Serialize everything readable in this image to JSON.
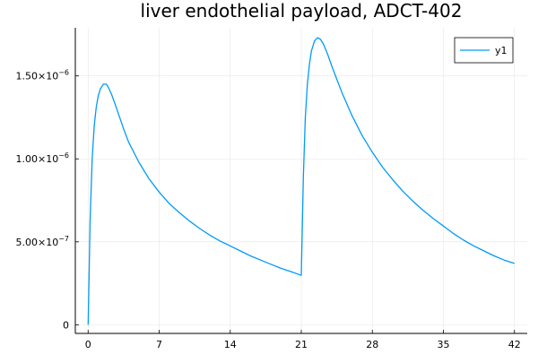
{
  "chart_data": {
    "type": "line",
    "title": "liver endothelial payload, ADCT-402",
    "xlabel": "",
    "ylabel": "",
    "xlim": [
      -1.26,
      43.26
    ],
    "ylim": [
      -5.2e-08,
      1.79e-06
    ],
    "x_ticks": [
      0,
      7,
      14,
      21,
      28,
      35,
      42
    ],
    "x_tick_labels": [
      "0",
      "7",
      "14",
      "21",
      "28",
      "35",
      "42"
    ],
    "y_ticks": [
      0,
      5e-07,
      1e-06,
      1.5e-06
    ],
    "y_tick_labels": [
      {
        "mantissa": "0",
        "exponent": ""
      },
      {
        "mantissa": "5.00×10",
        "exponent": "−7"
      },
      {
        "mantissa": "1.00×10",
        "exponent": "−6"
      },
      {
        "mantissa": "1.50×10",
        "exponent": "−6"
      }
    ],
    "grid": true,
    "legend_position": "top-right",
    "colors": {
      "series": "#009AF9",
      "grid": "#e6e6e6",
      "axis": "#000000"
    },
    "series": [
      {
        "name": "y1",
        "x": [
          0,
          0.2,
          0.4,
          0.6,
          0.8,
          1.0,
          1.2,
          1.5,
          1.8,
          2.0,
          2.3,
          2.6,
          3.0,
          3.5,
          4.0,
          5.0,
          6.0,
          7.0,
          8.0,
          9.0,
          10.0,
          11.0,
          12.0,
          13.0,
          14.0,
          15.0,
          16.0,
          17.0,
          18.0,
          19.0,
          20.0,
          21.0,
          21.0,
          21.2,
          21.4,
          21.6,
          21.8,
          22.0,
          22.3,
          22.6,
          22.9,
          23.2,
          23.6,
          24.0,
          24.5,
          25.0,
          26.0,
          27.0,
          28.0,
          29.0,
          30.0,
          31.0,
          32.0,
          33.0,
          34.0,
          35.0,
          36.0,
          37.0,
          38.0,
          39.0,
          40.0,
          41.0,
          42.0
        ],
        "y": [
          0,
          6.3e-07,
          1e-06,
          1.2e-06,
          1.31e-06,
          1.38e-06,
          1.42e-06,
          1.45e-06,
          1.45e-06,
          1.43e-06,
          1.39e-06,
          1.34e-06,
          1.27e-06,
          1.18e-06,
          1.1e-06,
          9.8e-07,
          8.8e-07,
          8e-07,
          7.3e-07,
          6.75e-07,
          6.25e-07,
          5.8e-07,
          5.4e-07,
          5.05e-07,
          4.75e-07,
          4.45e-07,
          4.15e-07,
          3.9e-07,
          3.65e-07,
          3.4e-07,
          3.2e-07,
          2.98e-07,
          2.98e-07,
          8.9e-07,
          1.25e-06,
          1.45e-06,
          1.57e-06,
          1.65e-06,
          1.71e-06,
          1.73e-06,
          1.72e-06,
          1.69e-06,
          1.63e-06,
          1.56e-06,
          1.48e-06,
          1.4e-06,
          1.26e-06,
          1.14e-06,
          1.04e-06,
          9.5e-07,
          8.75e-07,
          8.05e-07,
          7.45e-07,
          6.9e-07,
          6.4e-07,
          5.95e-07,
          5.5e-07,
          5.1e-07,
          4.75e-07,
          4.45e-07,
          4.15e-07,
          3.9e-07,
          3.7e-07
        ]
      }
    ]
  }
}
